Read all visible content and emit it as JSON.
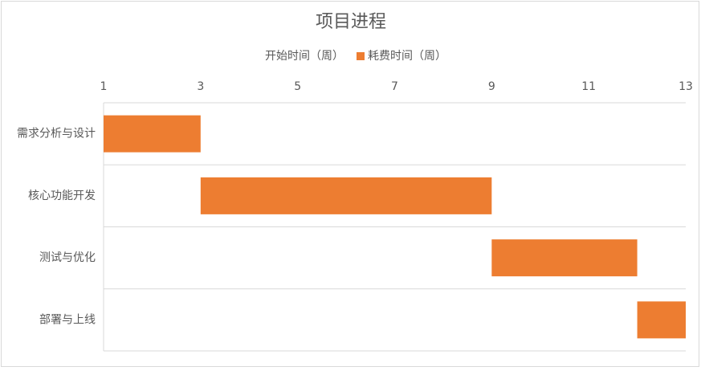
{
  "chart_data": {
    "type": "bar",
    "orientation": "horizontal",
    "stacked": true,
    "title": "项目进程",
    "categories": [
      "需求分析与设计",
      "核心功能开发",
      "测试与优化",
      "部署与上线"
    ],
    "series": [
      {
        "name": "开始时间（周）",
        "color": "none",
        "values": [
          1,
          3,
          9,
          12
        ]
      },
      {
        "name": "耗费时间（周）",
        "color": "#ed7d31",
        "values": [
          2,
          6,
          3,
          1
        ]
      }
    ],
    "xlim": [
      1,
      13
    ],
    "xticks": [
      1,
      3,
      5,
      7,
      9,
      11,
      13
    ],
    "legend": "top"
  }
}
